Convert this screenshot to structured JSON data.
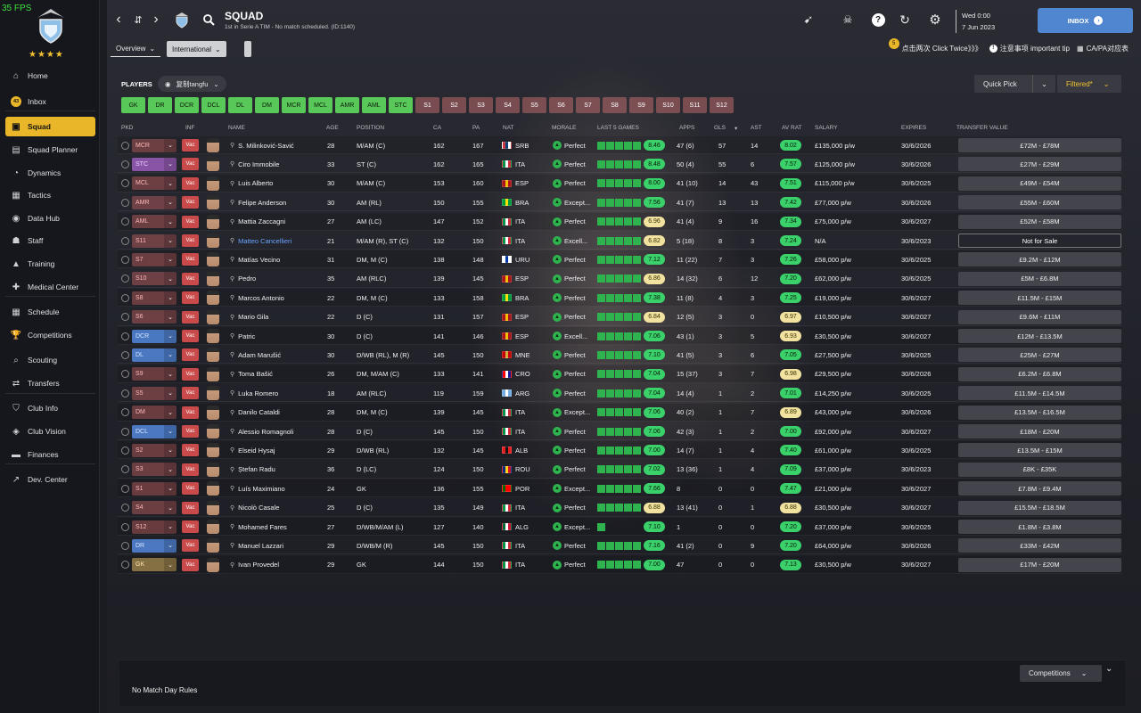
{
  "fps": "35 FPS",
  "club": {
    "stars": "★★★★"
  },
  "sidebar": {
    "items": [
      {
        "label": "Home",
        "icon": "home-icon",
        "glyph": "⌂"
      },
      {
        "label": "Inbox",
        "icon": "inbox-icon",
        "badge": "43"
      },
      {
        "label": "Squad",
        "icon": "squad-icon",
        "glyph": "▣",
        "active": true
      },
      {
        "label": "Squad Planner",
        "icon": "clipboard-icon",
        "glyph": "▤"
      },
      {
        "label": "Dynamics",
        "icon": "dynamics-icon",
        "glyph": "◔"
      },
      {
        "label": "Tactics",
        "icon": "tactics-icon",
        "glyph": "▦"
      },
      {
        "label": "Data Hub",
        "icon": "data-hub-icon",
        "glyph": "◉"
      },
      {
        "label": "Staff",
        "icon": "staff-icon",
        "glyph": "☗"
      },
      {
        "label": "Training",
        "icon": "training-icon",
        "glyph": "▲"
      },
      {
        "label": "Medical Center",
        "icon": "medical-icon",
        "glyph": "✚"
      },
      {
        "label": "Schedule",
        "icon": "calendar-icon",
        "glyph": "▦"
      },
      {
        "label": "Competitions",
        "icon": "trophy-icon",
        "glyph": "🏆"
      },
      {
        "label": "Scouting",
        "icon": "search-icon",
        "glyph": "⌕"
      },
      {
        "label": "Transfers",
        "icon": "transfer-icon",
        "glyph": "⇄"
      },
      {
        "label": "Club Info",
        "icon": "shield-icon",
        "glyph": "⛉"
      },
      {
        "label": "Club Vision",
        "icon": "vision-icon",
        "glyph": "◈"
      },
      {
        "label": "Finances",
        "icon": "finances-icon",
        "glyph": "▬"
      },
      {
        "label": "Dev. Center",
        "icon": "dev-center-icon",
        "glyph": "↗"
      }
    ]
  },
  "header": {
    "title": "SQUAD",
    "subtitle": "1st in Serie A TIM - No match scheduled. (ID:1140)",
    "date_day": "Wed 0:00",
    "date": "7 Jun 2023",
    "inbox_label": "INBOX"
  },
  "tabs": {
    "overview": "Overview",
    "international": "International"
  },
  "tips": {
    "badge": "5",
    "click_twice": "点击两次 Click Twice》》》",
    "important": "注意事项 important tip",
    "capa": "CA/PA对应表"
  },
  "players_label": "PLAYERS",
  "view_name": "复制tangfu",
  "quick_pick": "Quick Pick",
  "filter": "Filtered*",
  "position_chips": [
    {
      "label": "GK",
      "state": "green"
    },
    {
      "label": "DR",
      "state": "green"
    },
    {
      "label": "DCR",
      "state": "green"
    },
    {
      "label": "DCL",
      "state": "green"
    },
    {
      "label": "DL",
      "state": "green"
    },
    {
      "label": "DM",
      "state": "green"
    },
    {
      "label": "MCR",
      "state": "green"
    },
    {
      "label": "MCL",
      "state": "green"
    },
    {
      "label": "AMR",
      "state": "green"
    },
    {
      "label": "AML",
      "state": "green"
    },
    {
      "label": "STC",
      "state": "green"
    },
    {
      "label": "S1",
      "state": "red"
    },
    {
      "label": "S2",
      "state": "red"
    },
    {
      "label": "S3",
      "state": "red"
    },
    {
      "label": "S4",
      "state": "red"
    },
    {
      "label": "S5",
      "state": "red"
    },
    {
      "label": "S6",
      "state": "red"
    },
    {
      "label": "S7",
      "state": "red"
    },
    {
      "label": "S8",
      "state": "red"
    },
    {
      "label": "S9",
      "state": "red"
    },
    {
      "label": "S10",
      "state": "red"
    },
    {
      "label": "S11",
      "state": "red"
    },
    {
      "label": "S12",
      "state": "red"
    }
  ],
  "columns": {
    "pkd": "PKD",
    "inf": "INF",
    "name": "NAME",
    "age": "AGE",
    "position": "POSITION",
    "ca": "CA",
    "pa": "PA",
    "nat": "NAT",
    "morale": "MORALE",
    "last5": "LAST 5 GAMES",
    "apps": "APPS",
    "gls": "GLS",
    "ast": "AST",
    "avrat": "AV RAT",
    "salary": "SALARY",
    "expires": "EXPIRES",
    "tv": "TRANSFER VALUE"
  },
  "players": [
    {
      "slot": "MCR",
      "slot_style": "red",
      "name": "S. Milinković-Savić",
      "age": "28",
      "position": "M/AM (C)",
      "ca": "162",
      "pa": "167",
      "nat": "SRB",
      "morale": "Perfect",
      "form": "8.46",
      "form_style": "green",
      "apps": "47 (6)",
      "gls": "57",
      "ast": "14",
      "avrat": "8.02",
      "avrat_style": "green",
      "salary": "£135,000 p/w",
      "expires": "30/6/2026",
      "tv": "£72M - £78M",
      "last5": 5
    },
    {
      "slot": "STC",
      "slot_style": "purple",
      "name": "Ciro Immobile",
      "age": "33",
      "position": "ST (C)",
      "ca": "162",
      "pa": "165",
      "nat": "ITA",
      "morale": "Perfect",
      "form": "8.48",
      "form_style": "green",
      "apps": "50 (4)",
      "gls": "55",
      "ast": "6",
      "avrat": "7.57",
      "avrat_style": "green",
      "salary": "£125,000 p/w",
      "expires": "30/6/2026",
      "tv": "£27M - £29M",
      "last5": 5
    },
    {
      "slot": "MCL",
      "slot_style": "red",
      "name": "Luis Alberto",
      "age": "30",
      "position": "M/AM (C)",
      "ca": "153",
      "pa": "160",
      "nat": "ESP",
      "morale": "Perfect",
      "form": "8.00",
      "form_style": "green",
      "apps": "41 (10)",
      "gls": "14",
      "ast": "43",
      "avrat": "7.51",
      "avrat_style": "green",
      "salary": "£115,000 p/w",
      "expires": "30/6/2025",
      "tv": "£49M - £54M",
      "last5": 5
    },
    {
      "slot": "AMR",
      "slot_style": "red",
      "name": "Felipe Anderson",
      "age": "30",
      "position": "AM (RL)",
      "ca": "150",
      "pa": "155",
      "nat": "BRA",
      "morale": "Except...",
      "form": "7.56",
      "form_style": "green",
      "apps": "41 (7)",
      "gls": "13",
      "ast": "13",
      "avrat": "7.42",
      "avrat_style": "green",
      "salary": "£77,000 p/w",
      "expires": "30/6/2026",
      "tv": "£55M - £60M",
      "last5": 5
    },
    {
      "slot": "AML",
      "slot_style": "red",
      "name": "Mattia Zaccagni",
      "age": "27",
      "position": "AM (LC)",
      "ca": "147",
      "pa": "152",
      "nat": "ITA",
      "morale": "Perfect",
      "form": "6.96",
      "form_style": "yellow",
      "apps": "41 (4)",
      "gls": "9",
      "ast": "16",
      "avrat": "7.34",
      "avrat_style": "green",
      "salary": "£75,000 p/w",
      "expires": "30/6/2027",
      "tv": "£52M - £58M",
      "last5": 5
    },
    {
      "slot": "S11",
      "slot_style": "red",
      "name": "Matteo Cancellieri",
      "name_style": "blue",
      "age": "21",
      "position": "M/AM (R), ST (C)",
      "ca": "132",
      "pa": "150",
      "nat": "ITA",
      "morale": "Excell...",
      "form": "6.82",
      "form_style": "yellow",
      "apps": "5 (18)",
      "gls": "8",
      "ast": "3",
      "avrat": "7.24",
      "avrat_style": "green",
      "salary": "N/A",
      "expires": "30/6/2023",
      "tv": "Not for Sale",
      "tv_style": "nfs",
      "last5": 5
    },
    {
      "slot": "S7",
      "slot_style": "red",
      "name": "Matías Vecino",
      "age": "31",
      "position": "DM, M (C)",
      "ca": "138",
      "pa": "148",
      "nat": "URU",
      "morale": "Perfect",
      "form": "7.12",
      "form_style": "green",
      "apps": "11 (22)",
      "gls": "7",
      "ast": "3",
      "avrat": "7.26",
      "avrat_style": "green",
      "salary": "£58,000 p/w",
      "expires": "30/6/2025",
      "tv": "£9.2M - £12M",
      "last5": 5
    },
    {
      "slot": "S10",
      "slot_style": "red",
      "name": "Pedro",
      "age": "35",
      "position": "AM (RLC)",
      "ca": "139",
      "pa": "145",
      "nat": "ESP",
      "morale": "Perfect",
      "form": "6.86",
      "form_style": "yellow",
      "apps": "14 (32)",
      "gls": "6",
      "ast": "12",
      "avrat": "7.20",
      "avrat_style": "green",
      "salary": "£62,000 p/w",
      "expires": "30/6/2025",
      "tv": "£5M - £6.8M",
      "last5": 5
    },
    {
      "slot": "S8",
      "slot_style": "red",
      "name": "Marcos Antonio",
      "age": "22",
      "position": "DM, M (C)",
      "ca": "133",
      "pa": "158",
      "nat": "BRA",
      "morale": "Perfect",
      "form": "7.38",
      "form_style": "green",
      "apps": "11 (8)",
      "gls": "4",
      "ast": "3",
      "avrat": "7.25",
      "avrat_style": "green",
      "salary": "£19,000 p/w",
      "expires": "30/6/2027",
      "tv": "£11.5M - £15M",
      "last5": 5
    },
    {
      "slot": "S6",
      "slot_style": "red",
      "name": "Mario Gila",
      "age": "22",
      "position": "D (C)",
      "ca": "131",
      "pa": "157",
      "nat": "ESP",
      "morale": "Perfect",
      "form": "6.84",
      "form_style": "yellow",
      "apps": "12 (5)",
      "gls": "3",
      "ast": "0",
      "avrat": "6.97",
      "avrat_style": "yellow",
      "salary": "£10,500 p/w",
      "expires": "30/6/2027",
      "tv": "£9.6M - £11M",
      "last5": 5
    },
    {
      "slot": "DCR",
      "slot_style": "blue",
      "name": "Patric",
      "age": "30",
      "position": "D (C)",
      "ca": "141",
      "pa": "146",
      "nat": "ESP",
      "morale": "Excell...",
      "form": "7.06",
      "form_style": "green",
      "apps": "43 (1)",
      "gls": "3",
      "ast": "5",
      "avrat": "6.93",
      "avrat_style": "yellow",
      "salary": "£30,500 p/w",
      "expires": "30/6/2027",
      "tv": "£12M - £13.5M",
      "last5": 5
    },
    {
      "slot": "DL",
      "slot_style": "blue",
      "name": "Adam Marušić",
      "age": "30",
      "position": "D/WB (RL), M (R)",
      "ca": "145",
      "pa": "150",
      "nat": "MNE",
      "morale": "Perfect",
      "form": "7.10",
      "form_style": "green",
      "apps": "41 (5)",
      "gls": "3",
      "ast": "6",
      "avrat": "7.05",
      "avrat_style": "green",
      "salary": "£27,500 p/w",
      "expires": "30/6/2025",
      "tv": "£25M - £27M",
      "last5": 5
    },
    {
      "slot": "S9",
      "slot_style": "red",
      "name": "Toma Bašić",
      "age": "26",
      "position": "DM, M/AM (C)",
      "ca": "133",
      "pa": "141",
      "nat": "CRO",
      "morale": "Perfect",
      "form": "7.04",
      "form_style": "green",
      "apps": "15 (37)",
      "gls": "3",
      "ast": "7",
      "avrat": "6.98",
      "avrat_style": "yellow",
      "salary": "£29,500 p/w",
      "expires": "30/6/2026",
      "tv": "£6.2M - £6.8M",
      "last5": 5
    },
    {
      "slot": "S5",
      "slot_style": "red",
      "name": "Luka Romero",
      "age": "18",
      "position": "AM (RLC)",
      "ca": "119",
      "pa": "159",
      "nat": "ARG",
      "morale": "Perfect",
      "form": "7.04",
      "form_style": "green",
      "apps": "14 (4)",
      "gls": "1",
      "ast": "2",
      "avrat": "7.01",
      "avrat_style": "green",
      "salary": "£14,250 p/w",
      "expires": "30/6/2025",
      "tv": "£11.5M - £14.5M",
      "last5": 5
    },
    {
      "slot": "DM",
      "slot_style": "red",
      "name": "Danilo Cataldi",
      "age": "28",
      "position": "DM, M (C)",
      "ca": "139",
      "pa": "145",
      "nat": "ITA",
      "morale": "Except...",
      "form": "7.06",
      "form_style": "green",
      "apps": "40 (2)",
      "gls": "1",
      "ast": "7",
      "avrat": "6.89",
      "avrat_style": "yellow",
      "salary": "£43,000 p/w",
      "expires": "30/6/2026",
      "tv": "£13.5M - £16.5M",
      "last5": 5
    },
    {
      "slot": "DCL",
      "slot_style": "blue",
      "name": "Alessio Romagnoli",
      "age": "28",
      "position": "D (C)",
      "ca": "145",
      "pa": "150",
      "nat": "ITA",
      "morale": "Perfect",
      "form": "7.06",
      "form_style": "green",
      "apps": "42 (3)",
      "gls": "1",
      "ast": "2",
      "avrat": "7.00",
      "avrat_style": "green",
      "salary": "£92,000 p/w",
      "expires": "30/6/2027",
      "tv": "£18M - £20M",
      "last5": 5
    },
    {
      "slot": "S2",
      "slot_style": "red",
      "name": "Elseid Hysaj",
      "age": "29",
      "position": "D/WB (RL)",
      "ca": "132",
      "pa": "145",
      "nat": "ALB",
      "morale": "Perfect",
      "form": "7.00",
      "form_style": "green",
      "apps": "14 (7)",
      "gls": "1",
      "ast": "4",
      "avrat": "7.40",
      "avrat_style": "green",
      "salary": "£61,000 p/w",
      "expires": "30/6/2025",
      "tv": "£13.5M - £15M",
      "last5": 5
    },
    {
      "slot": "S3",
      "slot_style": "red",
      "name": "Ștefan Radu",
      "age": "36",
      "position": "D (LC)",
      "ca": "124",
      "pa": "150",
      "nat": "ROU",
      "morale": "Perfect",
      "form": "7.02",
      "form_style": "green",
      "apps": "13 (36)",
      "gls": "1",
      "ast": "4",
      "avrat": "7.09",
      "avrat_style": "green",
      "salary": "£37,000 p/w",
      "expires": "30/6/2023",
      "tv": "£8K - £35K",
      "last5": 5
    },
    {
      "slot": "S1",
      "slot_style": "red",
      "name": "Luís Maximiano",
      "age": "24",
      "position": "GK",
      "ca": "136",
      "pa": "155",
      "nat": "POR",
      "morale": "Except...",
      "form": "7.66",
      "form_style": "green",
      "apps": "8",
      "gls": "0",
      "ast": "0",
      "avrat": "7.47",
      "avrat_style": "green",
      "salary": "£21,000 p/w",
      "expires": "30/6/2027",
      "tv": "£7.8M - £9.4M",
      "last5": 5
    },
    {
      "slot": "S4",
      "slot_style": "red",
      "name": "Nicolò Casale",
      "age": "25",
      "position": "D (C)",
      "ca": "135",
      "pa": "149",
      "nat": "ITA",
      "morale": "Perfect",
      "form": "6.88",
      "form_style": "yellow",
      "apps": "13 (41)",
      "gls": "0",
      "ast": "1",
      "avrat": "6.88",
      "avrat_style": "yellow",
      "salary": "£30,500 p/w",
      "expires": "30/6/2027",
      "tv": "£15.5M - £18.5M",
      "last5": 5
    },
    {
      "slot": "S12",
      "slot_style": "red",
      "name": "Mohamed Fares",
      "age": "27",
      "position": "D/WB/M/AM (L)",
      "ca": "127",
      "pa": "140",
      "nat": "ALG",
      "morale": "Except...",
      "form": "7.10",
      "form_style": "green",
      "apps": "1",
      "gls": "0",
      "ast": "0",
      "avrat": "7.20",
      "avrat_style": "green",
      "salary": "£37,000 p/w",
      "expires": "30/6/2025",
      "tv": "£1.8M - £3.8M",
      "last5": 1
    },
    {
      "slot": "DR",
      "slot_style": "blue",
      "name": "Manuel Lazzari",
      "age": "29",
      "position": "D/WB/M (R)",
      "ca": "145",
      "pa": "150",
      "nat": "ITA",
      "morale": "Perfect",
      "form": "7.16",
      "form_style": "green",
      "apps": "41 (2)",
      "gls": "0",
      "ast": "9",
      "avrat": "7.20",
      "avrat_style": "green",
      "salary": "£64,000 p/w",
      "expires": "30/6/2026",
      "tv": "£33M - £42M",
      "last5": 5
    },
    {
      "slot": "GK",
      "slot_style": "ochre",
      "name": "Ivan Provedel",
      "age": "29",
      "position": "GK",
      "ca": "144",
      "pa": "150",
      "nat": "ITA",
      "morale": "Perfect",
      "form": "7.00",
      "form_style": "green",
      "apps": "47",
      "gls": "0",
      "ast": "0",
      "avrat": "7.13",
      "avrat_style": "green",
      "salary": "£30,500 p/w",
      "expires": "30/6/2027",
      "tv": "£17M - £20M",
      "last5": 5
    }
  ],
  "flags": {
    "SRB": [
      "#c6363c",
      "#0c4076",
      "#ffffff"
    ],
    "ITA": [
      "#009246",
      "#ffffff",
      "#ce2b37"
    ],
    "ESP": [
      "#aa151b",
      "#f1bf00",
      "#aa151b"
    ],
    "BRA": [
      "#009c3b",
      "#ffdf00",
      "#009c3b"
    ],
    "URU": [
      "#ffffff",
      "#0038a8",
      "#ffffff"
    ],
    "MNE": [
      "#c40308",
      "#d4af37",
      "#c40308"
    ],
    "CRO": [
      "#ff0000",
      "#ffffff",
      "#171796"
    ],
    "ARG": [
      "#74acdf",
      "#ffffff",
      "#74acdf"
    ],
    "ALB": [
      "#e41e20",
      "#111111",
      "#e41e20"
    ],
    "ROU": [
      "#002b7f",
      "#fcd116",
      "#ce1126"
    ],
    "POR": [
      "#006600",
      "#ff0000",
      "#ff0000"
    ],
    "ALG": [
      "#006633",
      "#ffffff",
      "#d21034"
    ]
  },
  "bottom": {
    "competitions": "Competitions",
    "no_rules": "No Match Day Rules"
  },
  "colors": {
    "accent": "#e9b62a",
    "inbox": "#4f86cf",
    "good": "#3ad06a"
  }
}
